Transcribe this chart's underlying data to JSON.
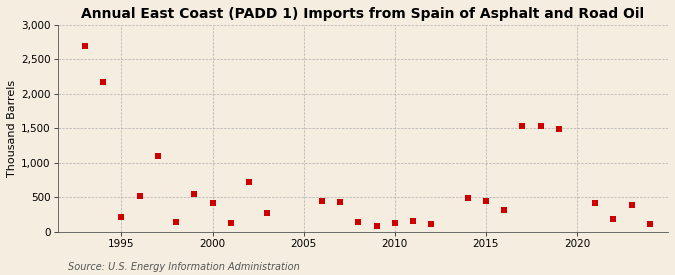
{
  "title": "Annual East Coast (PADD 1) Imports from Spain of Asphalt and Road Oil",
  "ylabel": "Thousand Barrels",
  "source": "Source: U.S. Energy Information Administration",
  "background_color": "#f5ede0",
  "plot_background_color": "#f5ede0",
  "marker_color": "#cc0000",
  "marker_size": 20,
  "years": [
    1993,
    1994,
    1995,
    1996,
    1997,
    1998,
    1999,
    2000,
    2001,
    2002,
    2003,
    2006,
    2007,
    2008,
    2009,
    2010,
    2011,
    2012,
    2014,
    2015,
    2016,
    2017,
    2018,
    2019,
    2021,
    2022,
    2023,
    2024
  ],
  "values": [
    2700,
    2170,
    220,
    520,
    1100,
    150,
    550,
    420,
    130,
    720,
    270,
    450,
    440,
    150,
    80,
    130,
    160,
    110,
    490,
    450,
    310,
    1530,
    1530,
    1490,
    420,
    185,
    390,
    110
  ],
  "ylim": [
    0,
    3000
  ],
  "xlim": [
    1991.5,
    2025
  ],
  "yticks": [
    0,
    500,
    1000,
    1500,
    2000,
    2500,
    3000
  ],
  "xticks": [
    1995,
    2000,
    2005,
    2010,
    2015,
    2020
  ],
  "title_fontsize": 10,
  "label_fontsize": 8,
  "tick_fontsize": 7.5,
  "source_fontsize": 7
}
